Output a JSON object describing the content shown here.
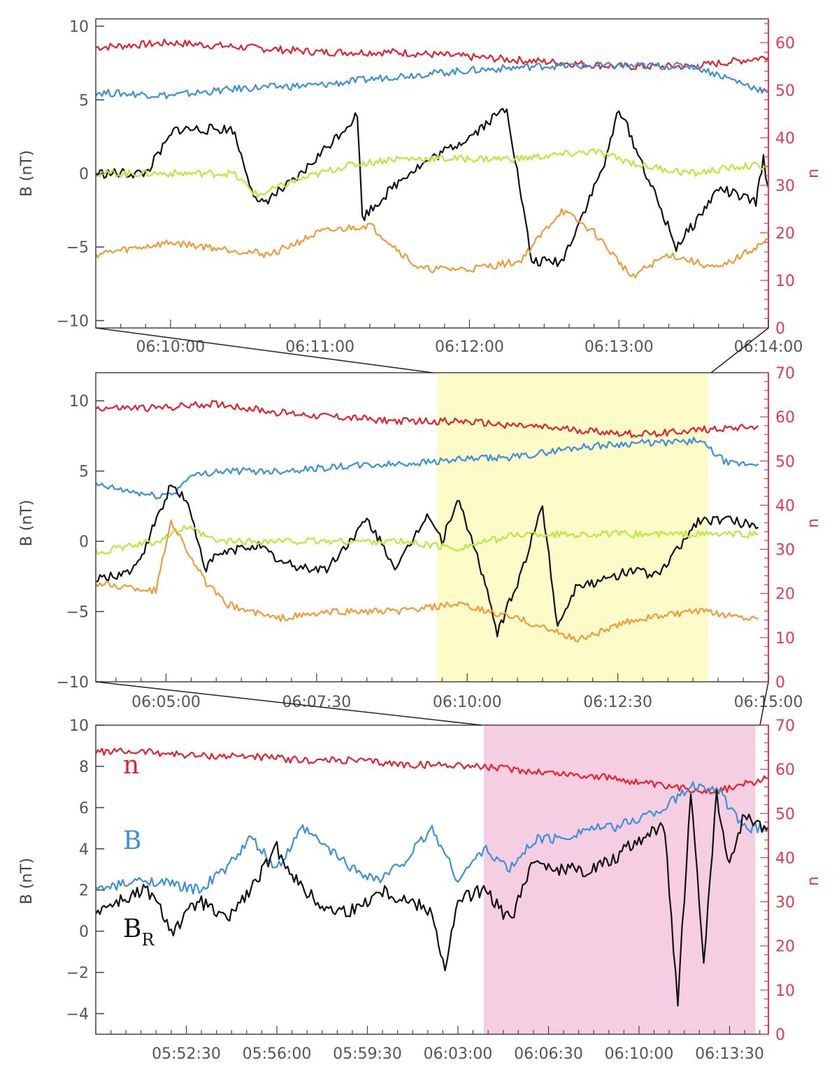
{
  "colors": {
    "n": "#e8202e",
    "B": "#3a8fde",
    "BR": "#111111",
    "green": "#b5ec3a",
    "orange": "#f39a38",
    "axis_right": "#e8384f",
    "highlight_yellow": "#fdfbc8",
    "highlight_pink": "#f5cfe1"
  },
  "chart_data": [
    {
      "type": "line",
      "title": "",
      "ylabel": "B (nT)",
      "ylabel_right": "n",
      "x_ticks": [
        "06:10:00",
        "06:11:00",
        "06:12:00",
        "06:13:00",
        "06:14:00"
      ],
      "y_ticks": [
        "10",
        "5",
        "0",
        "−5",
        "−10"
      ],
      "y_ticks_right": [
        "60",
        "50",
        "40",
        "30",
        "20",
        "10",
        "0"
      ],
      "x_range": [
        "06:09:30",
        "06:14:00"
      ],
      "ylim": [
        -10.5,
        10.5
      ],
      "ylim_right": [
        0,
        65
      ],
      "series": [
        {
          "name": "n",
          "axis": "right",
          "color": "#e8202e",
          "x_sec": [
            0,
            30,
            60,
            90,
            120,
            150,
            180,
            210,
            240,
            270
          ],
          "y": [
            59,
            60,
            59,
            58,
            58,
            57,
            56,
            55,
            55,
            57
          ]
        },
        {
          "name": "B",
          "axis": "left",
          "color": "#3a8fde",
          "x_sec": [
            0,
            30,
            60,
            90,
            120,
            150,
            180,
            210,
            240,
            270
          ],
          "y": [
            5.5,
            5.3,
            5.8,
            6,
            6.6,
            7,
            7.3,
            7.3,
            7.3,
            5.5
          ]
        },
        {
          "name": "BR",
          "axis": "left",
          "color": "#111111",
          "x_sec": [
            0,
            20,
            32,
            55,
            65,
            80,
            105,
            107,
            125,
            140,
            150,
            165,
            175,
            187,
            200,
            205,
            210,
            233,
            242,
            250,
            265,
            268,
            270
          ],
          "y": [
            0,
            0,
            3,
            3,
            -2.2,
            -0.5,
            4,
            -3,
            0,
            1.5,
            2.5,
            4.5,
            -6,
            -6,
            -1,
            1,
            4.5,
            -5,
            -3,
            -1,
            -2,
            1,
            -1
          ]
        },
        {
          "name": "",
          "axis": "left",
          "color": "#b5ec3a",
          "x_sec": [
            0,
            30,
            55,
            65,
            80,
            100,
            120,
            150,
            170,
            200,
            220,
            240,
            260,
            270
          ],
          "y": [
            0,
            0,
            0,
            -1.5,
            -0.5,
            0.5,
            1,
            1,
            1,
            1.5,
            0.5,
            0,
            0.5,
            0.5
          ]
        },
        {
          "name": "",
          "axis": "left",
          "color": "#f39a38",
          "x_sec": [
            0,
            30,
            55,
            70,
            90,
            110,
            130,
            150,
            170,
            187,
            200,
            215,
            230,
            250,
            270
          ],
          "y": [
            -5.5,
            -4.7,
            -5.2,
            -5.5,
            -4,
            -3.5,
            -6.5,
            -6.5,
            -6,
            -2.5,
            -4,
            -7,
            -5.5,
            -6.5,
            -4.5
          ]
        }
      ]
    },
    {
      "type": "line",
      "title": "",
      "ylabel": "B (nT)",
      "ylabel_right": "n",
      "x_ticks": [
        "06:05:00",
        "06:07:30",
        "06:10:00",
        "06:12:30",
        "06:15:00"
      ],
      "y_ticks": [
        "10",
        "5",
        "0",
        "−5",
        "−10"
      ],
      "y_ticks_right": [
        "70",
        "60",
        "50",
        "40",
        "30",
        "20",
        "10",
        "0"
      ],
      "x_range": [
        "06:03:50",
        "06:15:00"
      ],
      "ylim": [
        -10,
        12
      ],
      "ylim_right": [
        0,
        70
      ],
      "highlight": {
        "from": "06:09:30",
        "to": "06:14:00",
        "color": "#fdfbc8"
      },
      "series": [
        {
          "name": "n",
          "axis": "right",
          "color": "#e8202e",
          "x_sec": [
            0,
            60,
            120,
            180,
            240,
            300,
            360,
            420,
            480,
            540,
            600,
            660
          ],
          "y": [
            62,
            62,
            63,
            61,
            60,
            59,
            59,
            58,
            57,
            56,
            57,
            58
          ]
        },
        {
          "name": "B",
          "axis": "left",
          "color": "#3a8fde",
          "x_sec": [
            0,
            60,
            80,
            90,
            120,
            180,
            240,
            300,
            360,
            420,
            480,
            540,
            570,
            600,
            630,
            660
          ],
          "y": [
            4,
            3.2,
            3.5,
            4.5,
            5,
            5,
            5.3,
            5.5,
            5.8,
            6,
            6.7,
            7,
            7,
            7.2,
            5.5,
            5.5
          ]
        },
        {
          "name": "BR",
          "axis": "left",
          "color": "#111111",
          "x_sec": [
            0,
            40,
            75,
            90,
            100,
            110,
            120,
            160,
            185,
            200,
            230,
            270,
            300,
            330,
            345,
            360,
            380,
            400,
            420,
            445,
            460,
            480,
            500,
            535,
            560,
            600,
            630,
            660
          ],
          "y": [
            -2.8,
            -2,
            4,
            3,
            0.5,
            -2,
            -1,
            -0.2,
            -1.5,
            -1.8,
            -2,
            1.5,
            -2,
            2,
            0,
            3,
            -1,
            -6.5,
            -3,
            2.5,
            -6,
            -3,
            -3,
            -2,
            -2.5,
            1.5,
            1.5,
            1
          ]
        },
        {
          "name": "",
          "axis": "left",
          "color": "#b5ec3a",
          "x_sec": [
            0,
            60,
            90,
            120,
            180,
            240,
            300,
            360,
            420,
            480,
            540,
            600,
            660
          ],
          "y": [
            -0.8,
            0,
            1,
            0,
            0,
            0,
            0,
            -0.5,
            0.5,
            0.5,
            0.5,
            0.5,
            0.5
          ]
        },
        {
          "name": "",
          "axis": "left",
          "color": "#f39a38",
          "x_sec": [
            0,
            60,
            75,
            90,
            110,
            130,
            180,
            240,
            300,
            360,
            420,
            480,
            540,
            600,
            660
          ],
          "y": [
            -3,
            -3.5,
            1.5,
            -0.5,
            -3,
            -4.5,
            -5.5,
            -5,
            -5,
            -4.5,
            -5.5,
            -7,
            -5.5,
            -5,
            -5.5
          ]
        }
      ]
    },
    {
      "type": "line",
      "title": "",
      "ylabel": "B (nT)",
      "ylabel_right": "n",
      "x_ticks": [
        "05:52:30",
        "05:56:00",
        "05:59:30",
        "06:03:00",
        "06:06:30",
        "06:10:00",
        "06:13:30"
      ],
      "y_ticks": [
        "10",
        "8",
        "6",
        "4",
        "2",
        "0",
        "−2",
        "−4"
      ],
      "y_ticks_right": [
        "70",
        "60",
        "50",
        "40",
        "30",
        "20",
        "10",
        "0"
      ],
      "x_range": [
        "05:49:00",
        "06:15:00"
      ],
      "ylim": [
        -5,
        10
      ],
      "ylim_right": [
        0,
        70
      ],
      "highlight": {
        "from": "06:04:00",
        "to": "06:14:30",
        "color": "#f5cfe1"
      },
      "legend": [
        "n",
        "B",
        "BR"
      ],
      "series": [
        {
          "name": "n",
          "axis": "right",
          "color": "#e8202e",
          "x_sec": [
            0,
            120,
            240,
            360,
            480,
            600,
            720,
            840,
            960,
            1080,
            1200,
            1320,
            1440,
            1560
          ],
          "y": [
            64,
            64,
            63,
            63,
            62,
            62,
            61,
            61,
            60,
            59,
            58,
            56,
            55,
            58
          ]
        },
        {
          "name": "B",
          "axis": "left",
          "color": "#3a8fde",
          "x_sec": [
            0,
            120,
            240,
            300,
            360,
            420,
            480,
            540,
            600,
            660,
            720,
            780,
            840,
            900,
            960,
            1020,
            1080,
            1140,
            1200,
            1260,
            1320,
            1380,
            1440,
            1500,
            1560
          ],
          "y": [
            2,
            2.5,
            2,
            3,
            4.5,
            3,
            5,
            4,
            3,
            2.5,
            3.5,
            5,
            2.5,
            4,
            3,
            4.5,
            4.5,
            5,
            5,
            5.5,
            6,
            7,
            7,
            5,
            5
          ]
        },
        {
          "name": "BR",
          "axis": "left",
          "color": "#111111",
          "x_sec": [
            0,
            120,
            180,
            240,
            300,
            360,
            420,
            480,
            540,
            600,
            660,
            720,
            780,
            810,
            840,
            900,
            960,
            1020,
            1080,
            1140,
            1200,
            1260,
            1320,
            1350,
            1380,
            1410,
            1440,
            1470,
            1500,
            1560
          ],
          "y": [
            1,
            2,
            0,
            1.5,
            0.5,
            2,
            4,
            2,
            1,
            1,
            2,
            1.5,
            1,
            -2,
            1.5,
            2,
            0.5,
            3.5,
            3,
            3,
            3.5,
            4.5,
            5,
            -3.5,
            7,
            -1.5,
            6.5,
            3,
            5.5,
            5
          ]
        }
      ]
    }
  ],
  "legend": {
    "n": "n",
    "B": "B",
    "BR_main": "B",
    "BR_sub": "R"
  }
}
